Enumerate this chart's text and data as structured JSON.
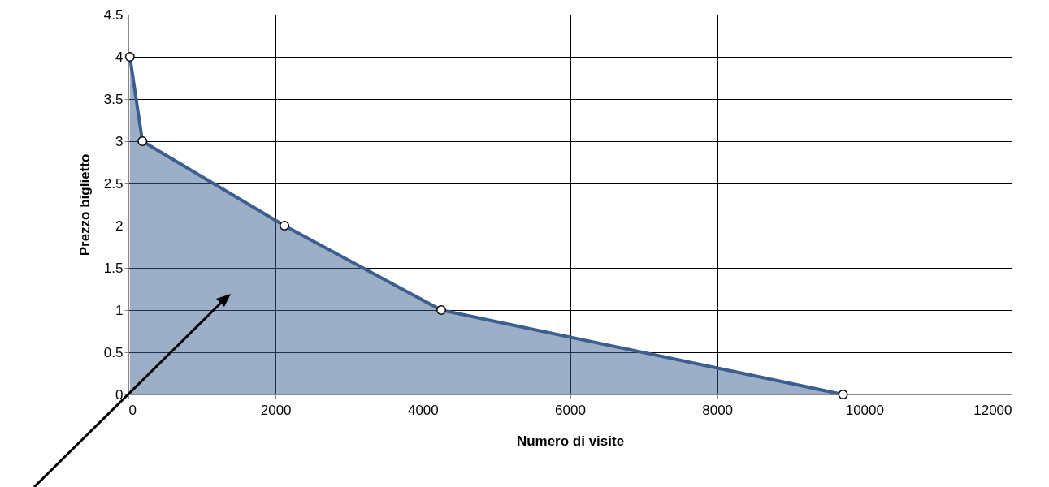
{
  "chart_data": {
    "type": "area",
    "xlabel": "Numero di visite",
    "ylabel": "Prezzo biglietto",
    "x": [
      20,
      190,
      2120,
      4250,
      9710
    ],
    "series": [
      {
        "color": "#3c5f8f",
        "values": [
          4,
          3,
          2,
          1,
          0
        ]
      }
    ],
    "xlim": [
      0,
      12000
    ],
    "xticks": [
      0,
      2000,
      4000,
      6000,
      8000,
      10000,
      12000
    ],
    "ylim": [
      0,
      4.5
    ],
    "yticks": [
      0,
      0.5,
      1,
      1.5,
      2,
      2.5,
      3,
      3.5,
      4,
      4.5
    ],
    "grid": true,
    "marker": "circle"
  }
}
